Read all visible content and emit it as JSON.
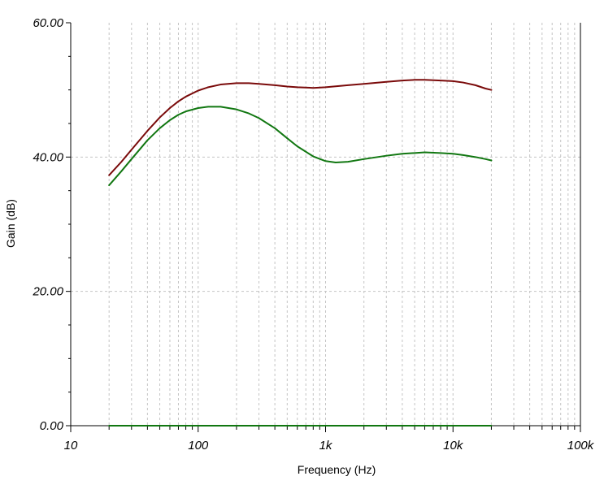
{
  "chart_data": {
    "type": "line",
    "xlabel": "Frequency (Hz)",
    "ylabel": "Gain (dB)",
    "x_scale": "log",
    "xlim": [
      10,
      100000
    ],
    "ylim": [
      0,
      60
    ],
    "x_ticks": [
      {
        "value": 10,
        "label": "10"
      },
      {
        "value": 100,
        "label": "100"
      },
      {
        "value": 1000,
        "label": "1k"
      },
      {
        "value": 10000,
        "label": "10k"
      },
      {
        "value": 100000,
        "label": "100k"
      }
    ],
    "y_ticks": [
      {
        "value": 0,
        "label": "0.00"
      },
      {
        "value": 20,
        "label": "20.00"
      },
      {
        "value": 40,
        "label": "40.00"
      },
      {
        "value": 60,
        "label": "60.00"
      }
    ],
    "grid": true,
    "series": [
      {
        "color": "#7a0a0a",
        "points": [
          [
            20,
            37.3
          ],
          [
            25,
            39.3
          ],
          [
            30,
            41.1
          ],
          [
            40,
            43.9
          ],
          [
            50,
            45.9
          ],
          [
            60,
            47.3
          ],
          [
            70,
            48.3
          ],
          [
            80,
            49.0
          ],
          [
            100,
            49.9
          ],
          [
            120,
            50.4
          ],
          [
            150,
            50.8
          ],
          [
            200,
            51.0
          ],
          [
            250,
            51.0
          ],
          [
            300,
            50.9
          ],
          [
            400,
            50.7
          ],
          [
            500,
            50.5
          ],
          [
            600,
            50.4
          ],
          [
            800,
            50.3
          ],
          [
            1000,
            50.4
          ],
          [
            1500,
            50.7
          ],
          [
            2000,
            50.9
          ],
          [
            3000,
            51.2
          ],
          [
            4000,
            51.4
          ],
          [
            5000,
            51.5
          ],
          [
            6000,
            51.5
          ],
          [
            8000,
            51.4
          ],
          [
            10000,
            51.3
          ],
          [
            12000,
            51.1
          ],
          [
            15000,
            50.7
          ],
          [
            18000,
            50.2
          ],
          [
            20000,
            50.0
          ]
        ]
      },
      {
        "color": "#117711",
        "points": [
          [
            20,
            35.8
          ],
          [
            25,
            37.9
          ],
          [
            30,
            39.7
          ],
          [
            40,
            42.5
          ],
          [
            50,
            44.3
          ],
          [
            60,
            45.5
          ],
          [
            70,
            46.3
          ],
          [
            80,
            46.8
          ],
          [
            100,
            47.3
          ],
          [
            120,
            47.5
          ],
          [
            150,
            47.5
          ],
          [
            200,
            47.1
          ],
          [
            250,
            46.5
          ],
          [
            300,
            45.8
          ],
          [
            400,
            44.3
          ],
          [
            500,
            42.8
          ],
          [
            600,
            41.6
          ],
          [
            800,
            40.1
          ],
          [
            1000,
            39.4
          ],
          [
            1200,
            39.2
          ],
          [
            1500,
            39.3
          ],
          [
            2000,
            39.7
          ],
          [
            3000,
            40.2
          ],
          [
            4000,
            40.5
          ],
          [
            5000,
            40.6
          ],
          [
            6000,
            40.7
          ],
          [
            8000,
            40.6
          ],
          [
            10000,
            40.5
          ],
          [
            12000,
            40.3
          ],
          [
            15000,
            40.0
          ],
          [
            18000,
            39.7
          ],
          [
            20000,
            39.5
          ]
        ]
      },
      {
        "color": "#117711",
        "points": [
          [
            20,
            0
          ],
          [
            20000,
            0
          ]
        ]
      }
    ]
  }
}
